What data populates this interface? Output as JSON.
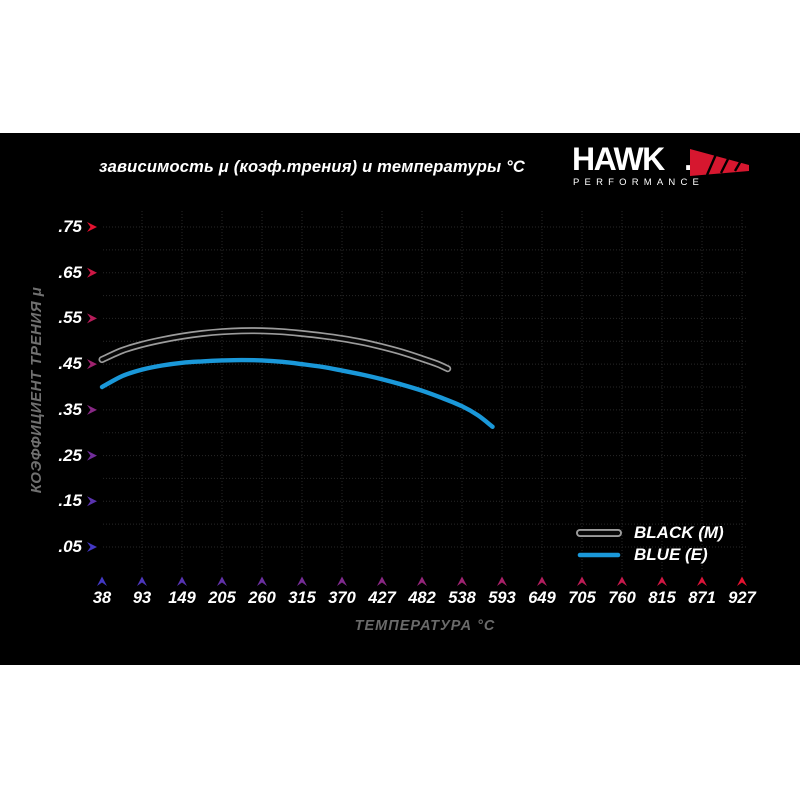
{
  "header": {
    "title": "зависимость μ (коэф.трения) и температуры °C",
    "logo_text": "HAWK",
    "logo_dot": ".",
    "logo_subtext": "PERFORMANCE"
  },
  "axes": {
    "y_title": "КОЭФФИЦИЕНТ ТРЕНИЯ μ",
    "x_title": "ТЕМПЕРАТУРА °C",
    "y_tick_labels": [
      ".75",
      ".65",
      ".55",
      ".45",
      ".35",
      ".25",
      ".15",
      ".05"
    ],
    "y_tick_values": [
      0.75,
      0.65,
      0.55,
      0.45,
      0.35,
      0.25,
      0.15,
      0.05
    ],
    "x_tick_labels": [
      "38",
      "93",
      "149",
      "205",
      "260",
      "315",
      "370",
      "427",
      "482",
      "538",
      "593",
      "649",
      "705",
      "760",
      "815",
      "871",
      "927"
    ]
  },
  "legend": [
    {
      "label": "BLACK (M)",
      "style": "tube"
    },
    {
      "label": "BLUE (E)",
      "style": "line"
    }
  ],
  "colors": {
    "background": "#ffffff",
    "panel": "#000000",
    "text": "#ffffff",
    "muted": "#6f6f6f",
    "grid": "#282828",
    "hot": "#e41230",
    "cold": "#4338c4",
    "blue_curve": "#1a98d9",
    "black_curve_core": "#070707",
    "black_curve_outline": "#9c9c9c",
    "logo_red": "#d6172f"
  },
  "chart_data": {
    "type": "line",
    "title": "зависимость μ (коэф.трения) и температуры °C",
    "xlabel": "ТЕМПЕРАТУРА °C",
    "ylabel": "КОЭФФИЦИЕНТ ТРЕНИЯ μ",
    "x_ticks": [
      38,
      93,
      149,
      205,
      260,
      315,
      370,
      427,
      482,
      538,
      593,
      649,
      705,
      760,
      815,
      871,
      927
    ],
    "y_ticks": [
      0.05,
      0.1,
      0.15,
      0.2,
      0.25,
      0.3,
      0.35,
      0.4,
      0.45,
      0.5,
      0.55,
      0.6,
      0.65,
      0.7,
      0.75
    ],
    "ylim": [
      0,
      0.8
    ],
    "grid": "dotted",
    "legend_position": "lower right",
    "series": [
      {
        "name": "BLACK (M)",
        "style": "tube",
        "points": [
          [
            38,
            0.46
          ],
          [
            66,
            0.48
          ],
          [
            93,
            0.493
          ],
          [
            121,
            0.503
          ],
          [
            149,
            0.511
          ],
          [
            177,
            0.517
          ],
          [
            205,
            0.521
          ],
          [
            232,
            0.523
          ],
          [
            260,
            0.523
          ],
          [
            288,
            0.521
          ],
          [
            315,
            0.517
          ],
          [
            343,
            0.512
          ],
          [
            370,
            0.506
          ],
          [
            399,
            0.498
          ],
          [
            427,
            0.488
          ],
          [
            455,
            0.476
          ],
          [
            482,
            0.462
          ],
          [
            504,
            0.45
          ],
          [
            518,
            0.44
          ]
        ]
      },
      {
        "name": "BLUE (E)",
        "style": "line",
        "points": [
          [
            38,
            0.4
          ],
          [
            66,
            0.424
          ],
          [
            93,
            0.438
          ],
          [
            121,
            0.447
          ],
          [
            149,
            0.453
          ],
          [
            177,
            0.456
          ],
          [
            205,
            0.458
          ],
          [
            232,
            0.459
          ],
          [
            260,
            0.458
          ],
          [
            288,
            0.455
          ],
          [
            315,
            0.45
          ],
          [
            343,
            0.444
          ],
          [
            370,
            0.436
          ],
          [
            399,
            0.427
          ],
          [
            427,
            0.417
          ],
          [
            455,
            0.405
          ],
          [
            482,
            0.392
          ],
          [
            510,
            0.376
          ],
          [
            538,
            0.358
          ],
          [
            560,
            0.338
          ],
          [
            580,
            0.313
          ]
        ]
      }
    ]
  }
}
